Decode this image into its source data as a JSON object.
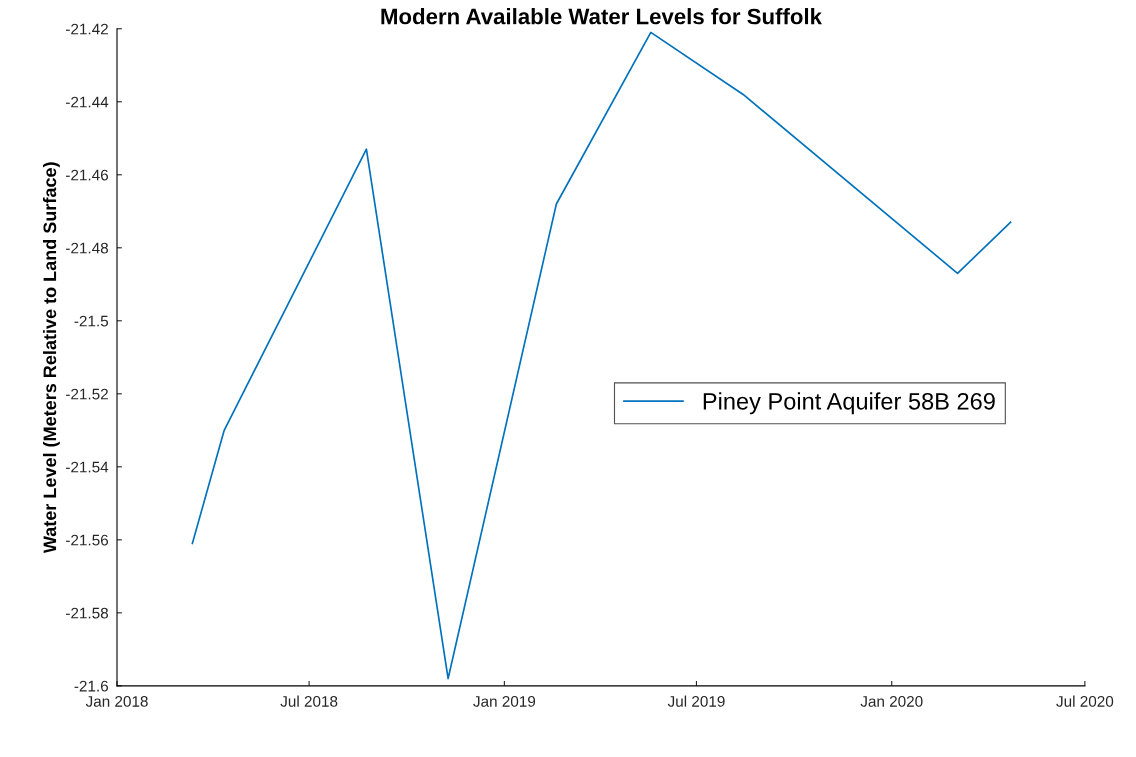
{
  "chart_data": {
    "type": "line",
    "title": "Modern Available Water Levels for Suffolk",
    "ylabel": "Water Level (Meters Relative to Land Surface)",
    "x": [
      "2018-03-13",
      "2018-04-12",
      "2018-08-24",
      "2018-11-09",
      "2019-02-19",
      "2019-05-19",
      "2019-08-14",
      "2020-03-03",
      "2020-04-22"
    ],
    "series": [
      {
        "name": "Piney Point Aquifer 58B 269",
        "color": "#0072bd",
        "values": [
          -21.561,
          -21.53,
          -21.453,
          -21.598,
          -21.468,
          -21.421,
          -21.438,
          -21.487,
          -21.473
        ]
      }
    ],
    "xlim": [
      "2018-01-01",
      "2020-07-01"
    ],
    "xticks": [
      {
        "value": "2018-01-01",
        "label": "Jan 2018"
      },
      {
        "value": "2018-07-01",
        "label": "Jul 2018"
      },
      {
        "value": "2019-01-01",
        "label": "Jan 2019"
      },
      {
        "value": "2019-07-01",
        "label": "Jul 2019"
      },
      {
        "value": "2020-01-01",
        "label": "Jan 2020"
      },
      {
        "value": "2020-07-01",
        "label": "Jul 2020"
      }
    ],
    "ylim": [
      -21.6,
      -21.42
    ],
    "yticks": [
      -21.6,
      -21.58,
      -21.56,
      -21.54,
      -21.52,
      -21.5,
      -21.48,
      -21.46,
      -21.44,
      -21.42
    ],
    "legend": "right",
    "grid": false,
    "marker": "none",
    "line_style": "solid"
  }
}
